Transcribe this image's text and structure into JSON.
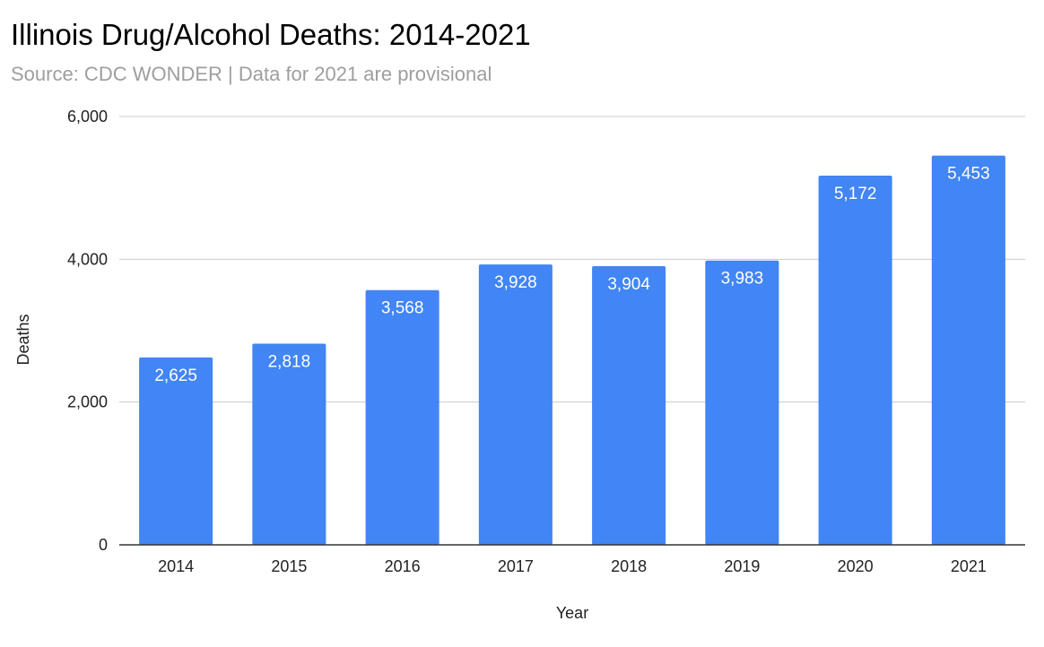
{
  "chart_data": {
    "type": "bar",
    "title": "Illinois Drug/Alcohol Deaths: 2014-2021",
    "subtitle": "Source: CDC WONDER | Data for 2021 are provisional",
    "xlabel": "Year",
    "ylabel": "Deaths",
    "categories": [
      "2014",
      "2015",
      "2016",
      "2017",
      "2018",
      "2019",
      "2020",
      "2021"
    ],
    "values": [
      2625,
      2818,
      3568,
      3928,
      3904,
      3983,
      5172,
      5453
    ],
    "data_labels": [
      "2,625",
      "2,818",
      "3,568",
      "3,928",
      "3,904",
      "3,983",
      "5,172",
      "5,453"
    ],
    "ylim": [
      0,
      6000
    ],
    "y_ticks": [
      0,
      2000,
      4000,
      6000
    ],
    "y_tick_labels": [
      "0",
      "2,000",
      "4,000",
      "6,000"
    ],
    "grid": true,
    "legend": "none",
    "colors": {
      "bar": "#4285f4",
      "grid": "#cccccc",
      "axis": "#333333",
      "subtitle": "#9e9e9e"
    }
  }
}
